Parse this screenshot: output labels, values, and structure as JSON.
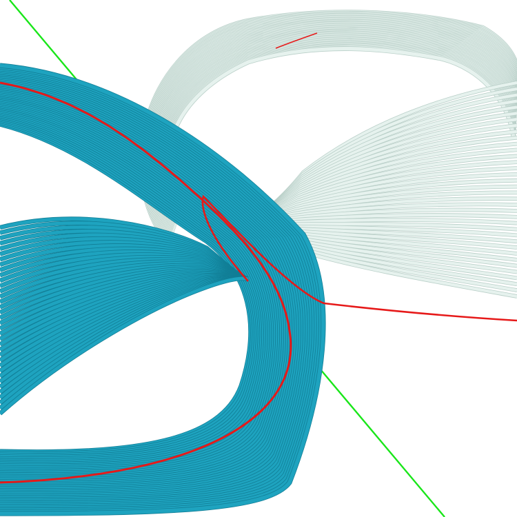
{
  "scene": {
    "background": "#ffffff",
    "bundles": [
      {
        "name": "teal-ribbon-bundle",
        "color": "#1ea3bf",
        "shade": "#117e96",
        "ribbon_count": 36
      },
      {
        "name": "mint-ribbon-bundle",
        "color": "#e6f2ee",
        "shade": "#b9cfc8",
        "ribbon_count": 36
      }
    ],
    "axis_line": {
      "name": "green-axis-line",
      "color": "#19e619"
    },
    "highlight_curves": [
      {
        "name": "red-curve-teal",
        "color": "#e61919"
      },
      {
        "name": "red-curve-mint",
        "color": "#e61919"
      }
    ]
  }
}
